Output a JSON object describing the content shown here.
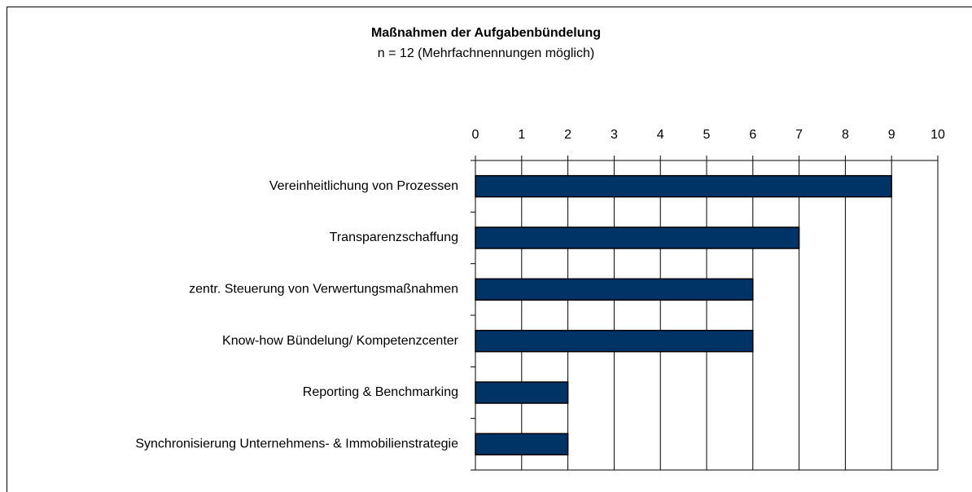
{
  "chart_data": {
    "type": "bar",
    "orientation": "horizontal",
    "title": "Maßnahmen der Aufgabenbündelung",
    "subtitle": "n = 12 (Mehrfachnennungen möglich)",
    "categories": [
      "Vereinheitlichung von Prozessen",
      "Transparenzschaffung",
      "zentr. Steuerung von Verwertungsmaßnahmen",
      "Know-how Bündelung/ Kompetenzcenter",
      "Reporting & Benchmarking",
      "Synchronisierung Unternehmens- & Immobilienstrategie"
    ],
    "values": [
      9,
      7,
      6,
      6,
      2,
      2
    ],
    "color": "#003366",
    "xlim": [
      0,
      10
    ],
    "xticks": [
      0,
      1,
      2,
      3,
      4,
      5,
      6,
      7,
      8,
      9,
      10
    ],
    "grid": true
  }
}
